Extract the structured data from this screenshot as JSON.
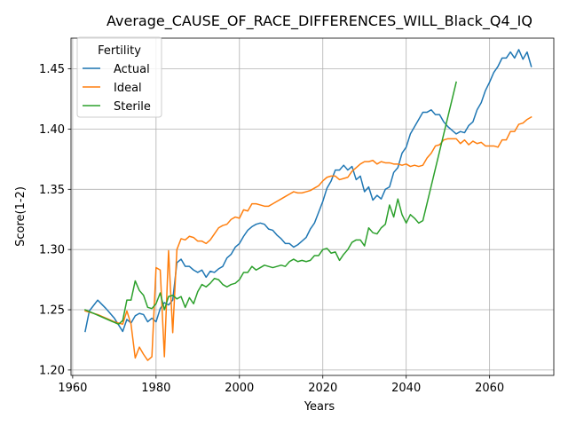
{
  "chart_data": {
    "type": "line",
    "title": "Average_CAUSE_OF_RACE_DIFFERENCES_WILL_Black_Q4_IQ",
    "xlabel": "Years",
    "ylabel": "Score(1-2)",
    "xlim": [
      1959.6,
      2075.4
    ],
    "ylim": [
      1.1955,
      1.4755
    ],
    "xticks": [
      1960,
      1980,
      2000,
      2020,
      2040,
      2060
    ],
    "yticks": [
      1.2,
      1.25,
      1.3,
      1.35,
      1.4,
      1.45
    ],
    "ytick_labels": [
      "1.20",
      "1.25",
      "1.30",
      "1.35",
      "1.40",
      "1.45"
    ],
    "grid": true,
    "legend": {
      "title": "Fertility",
      "placement": "upper-left"
    },
    "series": [
      {
        "name": "Actual",
        "color": "#1f77b4",
        "x": [
          1963,
          1964,
          1966,
          1968,
          1970,
          1972,
          1973,
          1974,
          1975,
          1976,
          1977,
          1978,
          1979,
          1980,
          1981,
          1982,
          1983,
          1984,
          1985,
          1986,
          1987,
          1988,
          1989,
          1990,
          1991,
          1992,
          1993,
          1994,
          1995,
          1996,
          1997,
          1998,
          1999,
          2000,
          2001,
          2002,
          2003,
          2004,
          2005,
          2006,
          2007,
          2008,
          2009,
          2010,
          2011,
          2012,
          2013,
          2014,
          2015,
          2016,
          2017,
          2018,
          2019,
          2020,
          2021,
          2022,
          2023,
          2024,
          2025,
          2026,
          2027,
          2028,
          2029,
          2030,
          2031,
          2032,
          2033,
          2034,
          2035,
          2036,
          2037,
          2038,
          2039,
          2040,
          2041,
          2042,
          2043,
          2044,
          2045,
          2046,
          2047,
          2048,
          2049,
          2050,
          2051,
          2052,
          2053,
          2054,
          2055,
          2056,
          2057,
          2058,
          2059,
          2060,
          2061,
          2062,
          2063,
          2064,
          2065,
          2066,
          2067,
          2068,
          2069,
          2070
        ],
        "y": [
          1.232,
          1.249,
          1.258,
          1.251,
          1.243,
          1.232,
          1.242,
          1.239,
          1.245,
          1.247,
          1.246,
          1.24,
          1.243,
          1.24,
          1.251,
          1.256,
          1.254,
          1.258,
          1.289,
          1.292,
          1.286,
          1.286,
          1.283,
          1.281,
          1.283,
          1.277,
          1.282,
          1.281,
          1.284,
          1.286,
          1.293,
          1.296,
          1.302,
          1.305,
          1.311,
          1.316,
          1.319,
          1.321,
          1.322,
          1.321,
          1.317,
          1.316,
          1.312,
          1.309,
          1.305,
          1.305,
          1.302,
          1.304,
          1.307,
          1.31,
          1.317,
          1.322,
          1.331,
          1.34,
          1.351,
          1.357,
          1.366,
          1.366,
          1.37,
          1.366,
          1.369,
          1.358,
          1.361,
          1.348,
          1.352,
          1.341,
          1.345,
          1.342,
          1.35,
          1.352,
          1.364,
          1.368,
          1.38,
          1.385,
          1.396,
          1.402,
          1.408,
          1.414,
          1.414,
          1.416,
          1.412,
          1.412,
          1.406,
          1.402,
          1.399,
          1.396,
          1.398,
          1.397,
          1.403,
          1.406,
          1.416,
          1.422,
          1.432,
          1.439,
          1.447,
          1.452,
          1.459,
          1.459,
          1.464,
          1.459,
          1.466,
          1.458,
          1.464,
          1.452
        ]
      },
      {
        "name": "Ideal",
        "color": "#ff7f0e",
        "x": [
          1963,
          1966,
          1970,
          1972,
          1973,
          1974,
          1975,
          1976,
          1977,
          1978,
          1979,
          1980,
          1981,
          1982,
          1983,
          1984,
          1985,
          1986,
          1987,
          1988,
          1989,
          1990,
          1991,
          1992,
          1993,
          1994,
          1995,
          1996,
          1997,
          1998,
          1999,
          2000,
          2001,
          2002,
          2003,
          2004,
          2005,
          2006,
          2007,
          2008,
          2009,
          2010,
          2011,
          2012,
          2013,
          2014,
          2015,
          2016,
          2017,
          2018,
          2019,
          2020,
          2021,
          2022,
          2023,
          2024,
          2025,
          2026,
          2027,
          2028,
          2029,
          2030,
          2031,
          2032,
          2033,
          2034,
          2035,
          2036,
          2037,
          2038,
          2039,
          2040,
          2041,
          2042,
          2043,
          2044,
          2045,
          2046,
          2047,
          2048,
          2049,
          2050,
          2051,
          2052,
          2053,
          2054,
          2055,
          2056,
          2057,
          2058,
          2059,
          2060,
          2061,
          2062,
          2063,
          2064,
          2065,
          2066,
          2067,
          2068,
          2069,
          2070
        ],
        "y": [
          1.249,
          1.246,
          1.24,
          1.238,
          1.249,
          1.238,
          1.21,
          1.219,
          1.213,
          1.208,
          1.211,
          1.285,
          1.283,
          1.211,
          1.299,
          1.231,
          1.3,
          1.309,
          1.308,
          1.311,
          1.31,
          1.307,
          1.307,
          1.305,
          1.308,
          1.313,
          1.318,
          1.32,
          1.321,
          1.325,
          1.327,
          1.326,
          1.333,
          1.332,
          1.338,
          1.338,
          1.337,
          1.336,
          1.336,
          1.338,
          1.34,
          1.342,
          1.344,
          1.346,
          1.348,
          1.347,
          1.347,
          1.348,
          1.349,
          1.351,
          1.353,
          1.357,
          1.36,
          1.361,
          1.361,
          1.358,
          1.359,
          1.36,
          1.365,
          1.368,
          1.371,
          1.373,
          1.373,
          1.374,
          1.371,
          1.373,
          1.372,
          1.372,
          1.371,
          1.371,
          1.37,
          1.371,
          1.369,
          1.37,
          1.369,
          1.37,
          1.376,
          1.38,
          1.386,
          1.387,
          1.391,
          1.392,
          1.392,
          1.392,
          1.388,
          1.391,
          1.387,
          1.39,
          1.388,
          1.389,
          1.386,
          1.386,
          1.386,
          1.385,
          1.391,
          1.391,
          1.398,
          1.398,
          1.404,
          1.405,
          1.408,
          1.41
        ]
      },
      {
        "name": "Sterile",
        "color": "#2ca02c",
        "x": [
          1963,
          1965,
          1967,
          1969,
          1971,
          1972,
          1973,
          1974,
          1975,
          1976,
          1977,
          1978,
          1979,
          1980,
          1981,
          1982,
          1983,
          1984,
          1985,
          1986,
          1987,
          1988,
          1989,
          1990,
          1991,
          1992,
          1993,
          1994,
          1995,
          1996,
          1997,
          1998,
          1999,
          2000,
          2001,
          2002,
          2003,
          2004,
          2005,
          2006,
          2007,
          2008,
          2009,
          2010,
          2011,
          2012,
          2013,
          2014,
          2015,
          2016,
          2017,
          2018,
          2019,
          2020,
          2021,
          2022,
          2023,
          2024,
          2025,
          2026,
          2027,
          2028,
          2029,
          2030,
          2031,
          2032,
          2033,
          2034,
          2035,
          2036,
          2037,
          2038,
          2039,
          2040,
          2041,
          2042,
          2043,
          2044,
          2052
        ],
        "y": [
          1.25,
          1.247,
          1.244,
          1.241,
          1.238,
          1.241,
          1.258,
          1.258,
          1.274,
          1.266,
          1.262,
          1.252,
          1.251,
          1.255,
          1.264,
          1.25,
          1.261,
          1.262,
          1.259,
          1.261,
          1.252,
          1.26,
          1.255,
          1.265,
          1.271,
          1.269,
          1.272,
          1.276,
          1.275,
          1.271,
          1.269,
          1.271,
          1.272,
          1.275,
          1.281,
          1.281,
          1.286,
          1.283,
          1.285,
          1.287,
          1.286,
          1.285,
          1.286,
          1.287,
          1.286,
          1.29,
          1.292,
          1.29,
          1.291,
          1.29,
          1.291,
          1.295,
          1.295,
          1.3,
          1.301,
          1.297,
          1.298,
          1.291,
          1.296,
          1.3,
          1.306,
          1.308,
          1.308,
          1.303,
          1.318,
          1.314,
          1.313,
          1.318,
          1.321,
          1.337,
          1.327,
          1.342,
          1.329,
          1.322,
          1.329,
          1.326,
          1.322,
          1.324,
          1.439
        ]
      }
    ]
  }
}
